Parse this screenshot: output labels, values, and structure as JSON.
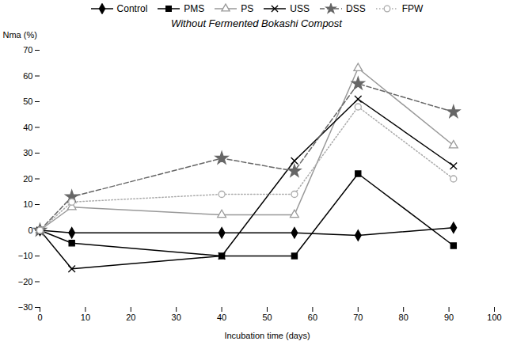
{
  "chart_data": {
    "type": "line",
    "title": "Without Fermented Bokashi Compost",
    "xlabel": "Incubation time (days)",
    "ylabel": "Nma (%)",
    "x": [
      0,
      7,
      40,
      56,
      70,
      91
    ],
    "xlim": [
      0,
      100
    ],
    "ylim": [
      -30,
      70
    ],
    "xticks": [
      0,
      10,
      20,
      30,
      40,
      50,
      60,
      70,
      80,
      90,
      100
    ],
    "yticks": [
      -30,
      -20,
      -10,
      0,
      10,
      20,
      30,
      40,
      50,
      60,
      70
    ],
    "grid": false,
    "legend": "top",
    "series": [
      {
        "name": "Control",
        "color": "#000000",
        "marker": "diamond",
        "line_style": "solid",
        "values": [
          0,
          -1,
          -1,
          -1,
          -2,
          1
        ]
      },
      {
        "name": "PMS",
        "color": "#000000",
        "marker": "square",
        "line_style": "solid",
        "values": [
          0,
          -5,
          -10,
          -10,
          22,
          -6
        ]
      },
      {
        "name": "PS",
        "color": "#999999",
        "marker": "triangle-open",
        "line_style": "solid",
        "values": [
          0,
          9,
          6,
          6,
          63,
          33
        ]
      },
      {
        "name": "USS",
        "color": "#000000",
        "marker": "x",
        "line_style": "solid",
        "values": [
          0,
          -15,
          -10,
          27,
          51,
          25
        ]
      },
      {
        "name": "DSS",
        "color": "#666666",
        "marker": "star",
        "line_style": "dashed",
        "values": [
          0,
          13,
          28,
          23,
          57,
          46
        ]
      },
      {
        "name": "FPW",
        "color": "#aaaaaa",
        "marker": "circle-open",
        "line_style": "dotted",
        "values": [
          0,
          11,
          14,
          14,
          48,
          20
        ]
      }
    ]
  }
}
